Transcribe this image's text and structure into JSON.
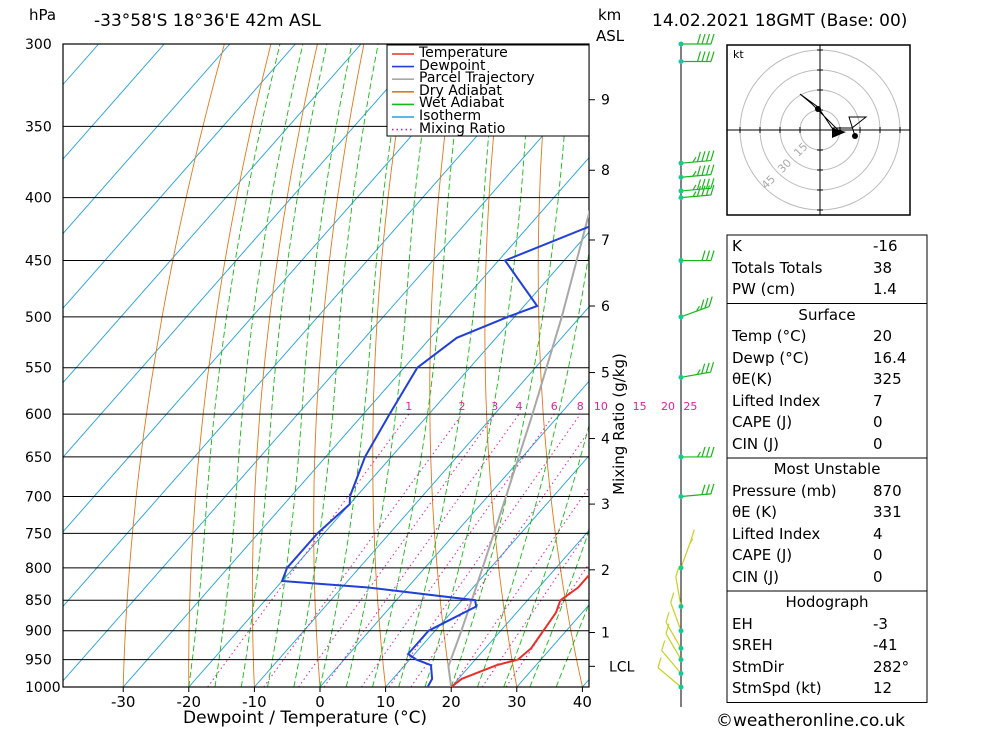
{
  "header": {
    "pressure_unit": "hPa",
    "location": "-33°58'S 18°36'E 42m ASL",
    "height_unit_top": "km",
    "height_unit_bottom": "ASL",
    "datetime": "14.02.2021 18GMT (Base: 00)"
  },
  "chart_data": {
    "type": "line",
    "title": "",
    "xlabel": "Dewpoint / Temperature (°C)",
    "ylabel": "hPa",
    "secondary_ylabel": "Mixing Ratio (g/kg)",
    "x_ticks": [
      -30,
      -20,
      -10,
      0,
      10,
      20,
      30,
      40
    ],
    "xlim": [
      -40,
      40
    ],
    "pressure_ticks": [
      300,
      350,
      400,
      450,
      500,
      550,
      600,
      650,
      700,
      750,
      800,
      850,
      900,
      950,
      1000
    ],
    "ylim_hpa": [
      1000,
      300
    ],
    "y_scale": "log",
    "height_km_ticks": [
      {
        "label": "1",
        "p": 903
      },
      {
        "label": "2",
        "p": 803
      },
      {
        "label": "3",
        "p": 710
      },
      {
        "label": "4",
        "p": 628
      },
      {
        "label": "5",
        "p": 555
      },
      {
        "label": "6",
        "p": 490
      },
      {
        "label": "7",
        "p": 433
      },
      {
        "label": "8",
        "p": 380
      },
      {
        "label": "9",
        "p": 333
      },
      {
        "label": "LCL",
        "p": 962
      }
    ],
    "mixing_ratio_labels": [
      "1",
      "2",
      "3",
      "4",
      "6",
      "8",
      "10",
      "15",
      "20",
      "25"
    ],
    "mixing_ratio_values": [
      1,
      2,
      3,
      4,
      6,
      8,
      10,
      15,
      20,
      25
    ],
    "legend": {
      "placement": "top-right",
      "entries": [
        {
          "name": "Temperature",
          "color": "#e8302a",
          "style": "solid"
        },
        {
          "name": "Dewpoint",
          "color": "#2040d8",
          "style": "solid"
        },
        {
          "name": "Parcel Trajectory",
          "color": "#a8a8a8",
          "style": "solid"
        },
        {
          "name": "Dry Adiabat",
          "color": "#e07818",
          "style": "solid"
        },
        {
          "name": "Wet Adiabat",
          "color": "#18b818",
          "style": "solid"
        },
        {
          "name": "Isotherm",
          "color": "#20a0e0",
          "style": "solid"
        },
        {
          "name": "Mixing Ratio",
          "color": "#e020a0",
          "style": "dotted"
        }
      ]
    },
    "temperature": [
      [
        1000,
        20
      ],
      [
        985,
        20.5
      ],
      [
        960,
        24
      ],
      [
        950,
        26.5
      ],
      [
        930,
        27
      ],
      [
        900,
        26.5
      ],
      [
        870,
        26
      ],
      [
        850,
        25
      ],
      [
        830,
        26
      ],
      [
        800,
        26
      ],
      [
        780,
        25.5
      ],
      [
        750,
        25
      ],
      [
        730,
        24
      ],
      [
        700,
        23
      ],
      [
        650,
        17
      ],
      [
        600,
        12
      ],
      [
        550,
        7
      ],
      [
        500,
        0
      ],
      [
        480,
        -3
      ],
      [
        450,
        -6
      ],
      [
        420,
        -11.5
      ],
      [
        400,
        -16
      ],
      [
        370,
        -21
      ],
      [
        350,
        -25
      ],
      [
        300,
        -32
      ]
    ],
    "dewpoint": [
      [
        1000,
        16.4
      ],
      [
        985,
        16
      ],
      [
        960,
        14
      ],
      [
        950,
        11
      ],
      [
        940,
        9
      ],
      [
        900,
        9
      ],
      [
        880,
        11
      ],
      [
        860,
        13
      ],
      [
        850,
        12
      ],
      [
        830,
        -6
      ],
      [
        820,
        -20
      ],
      [
        800,
        -21
      ],
      [
        750,
        -21
      ],
      [
        710,
        -20
      ],
      [
        700,
        -21
      ],
      [
        650,
        -24
      ],
      [
        600,
        -26
      ],
      [
        550,
        -28
      ],
      [
        520,
        -26
      ],
      [
        500,
        -21
      ],
      [
        490,
        -18
      ],
      [
        450,
        -29
      ],
      [
        420,
        -20
      ],
      [
        390,
        -25
      ],
      [
        370,
        -21
      ],
      [
        350,
        -15
      ],
      [
        330,
        -34
      ],
      [
        310,
        -41
      ],
      [
        300,
        -41
      ]
    ],
    "parcel": [
      [
        1000,
        20
      ],
      [
        962,
        16.8
      ],
      [
        900,
        14
      ],
      [
        850,
        11.5
      ],
      [
        800,
        8.8
      ],
      [
        700,
        2.8
      ],
      [
        600,
        -4.2
      ],
      [
        500,
        -12.8
      ],
      [
        400,
        -24
      ],
      [
        300,
        -40
      ]
    ],
    "wind_profile": [
      {
        "p": 300,
        "dir": 270,
        "kt": 40
      },
      {
        "p": 310,
        "dir": 270,
        "kt": 40
      },
      {
        "p": 375,
        "dir": 265,
        "kt": 35
      },
      {
        "p": 385,
        "dir": 265,
        "kt": 35
      },
      {
        "p": 395,
        "dir": 265,
        "kt": 35
      },
      {
        "p": 400,
        "dir": 265,
        "kt": 35
      },
      {
        "p": 450,
        "dir": 270,
        "kt": 30
      },
      {
        "p": 500,
        "dir": 250,
        "kt": 25
      },
      {
        "p": 560,
        "dir": 260,
        "kt": 25
      },
      {
        "p": 650,
        "dir": 270,
        "kt": 25
      },
      {
        "p": 700,
        "dir": 265,
        "kt": 30
      },
      {
        "p": 800,
        "dir": 200,
        "kt": 5
      },
      {
        "p": 860,
        "dir": 170,
        "kt": 10
      },
      {
        "p": 900,
        "dir": 160,
        "kt": 10
      },
      {
        "p": 930,
        "dir": 150,
        "kt": 10
      },
      {
        "p": 950,
        "dir": 150,
        "kt": 10
      },
      {
        "p": 975,
        "dir": 140,
        "kt": 10
      },
      {
        "p": 1000,
        "dir": 130,
        "kt": 10
      }
    ]
  },
  "hodograph": {
    "unit": "kt",
    "rings": [
      "15",
      "30",
      "45"
    ]
  },
  "indices": {
    "top": [
      {
        "label": "K",
        "value": "-16"
      },
      {
        "label": "Totals Totals",
        "value": "38"
      },
      {
        "label": "PW (cm)",
        "value": "1.4"
      }
    ],
    "surface": {
      "title": "Surface",
      "rows": [
        {
          "label": "Temp (°C)",
          "value": "20"
        },
        {
          "label": "Dewp (°C)",
          "value": "16.4"
        },
        {
          "label": "θE(K)",
          "value": "325"
        },
        {
          "label": "Lifted Index",
          "value": "7"
        },
        {
          "label": "CAPE (J)",
          "value": "0"
        },
        {
          "label": "CIN (J)",
          "value": "0"
        }
      ]
    },
    "most_unstable": {
      "title": "Most Unstable",
      "rows": [
        {
          "label": "Pressure (mb)",
          "value": "870"
        },
        {
          "label": "θE (K)",
          "value": "331"
        },
        {
          "label": "Lifted Index",
          "value": "4"
        },
        {
          "label": "CAPE (J)",
          "value": "0"
        },
        {
          "label": "CIN (J)",
          "value": "0"
        }
      ]
    },
    "hodograph_box": {
      "title": "Hodograph",
      "rows": [
        {
          "label": "EH",
          "value": "-3"
        },
        {
          "label": "SREH",
          "value": "-41"
        },
        {
          "label": "StmDir",
          "value": "282°"
        },
        {
          "label": "StmSpd (kt)",
          "value": "12"
        }
      ]
    }
  },
  "credit": "©weatheronline.co.uk"
}
